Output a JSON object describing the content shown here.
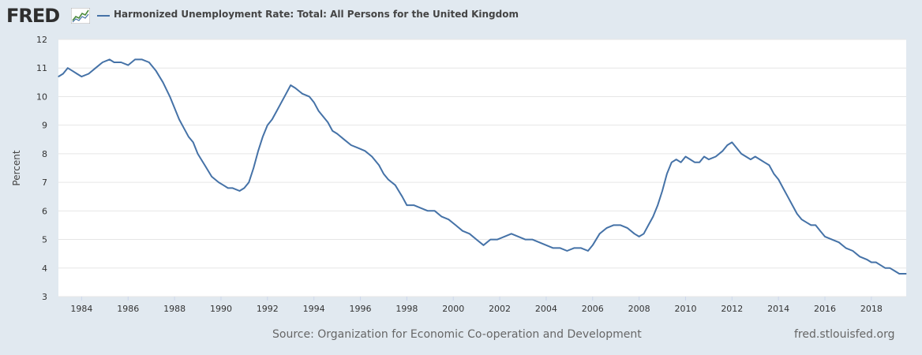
{
  "header": {
    "logo_text": "FRED",
    "title": "Harmonized Unemployment Rate: Total: All Persons for the United Kingdom"
  },
  "footer": {
    "source": "Source: Organization for Economic Co-operation and Development",
    "site": "fred.stlouisfed.org"
  },
  "colors": {
    "series": "#4572a7",
    "background": "#e1e9f0",
    "plot_bg": "#ffffff",
    "grid": "#e6e6e6"
  },
  "icons": {
    "logo_graph": "line-chart-icon"
  },
  "chart_data": {
    "type": "line",
    "title": "Harmonized Unemployment Rate: Total: All Persons for the United Kingdom",
    "xlabel": "",
    "ylabel": "Percent",
    "xlim": [
      1983.0,
      2019.5
    ],
    "ylim": [
      3,
      12
    ],
    "y_ticks": [
      3,
      4,
      5,
      6,
      7,
      8,
      9,
      10,
      11,
      12
    ],
    "x_ticks": [
      1984,
      1986,
      1988,
      1990,
      1992,
      1994,
      1996,
      1998,
      2000,
      2002,
      2004,
      2006,
      2008,
      2010,
      2012,
      2014,
      2016,
      2018
    ],
    "grid": true,
    "legend": "top-left",
    "series": [
      {
        "name": "Harmonized Unemployment Rate: Total: All Persons for the United Kingdom",
        "x": [
          1983.0,
          1983.2,
          1983.4,
          1983.6,
          1983.8,
          1984.0,
          1984.3,
          1984.6,
          1984.9,
          1985.2,
          1985.4,
          1985.7,
          1986.0,
          1986.3,
          1986.6,
          1986.9,
          1987.2,
          1987.5,
          1987.8,
          1988.0,
          1988.2,
          1988.4,
          1988.6,
          1988.8,
          1989.0,
          1989.3,
          1989.6,
          1989.9,
          1990.1,
          1990.3,
          1990.5,
          1990.8,
          1991.0,
          1991.2,
          1991.4,
          1991.6,
          1991.8,
          1992.0,
          1992.2,
          1992.4,
          1992.6,
          1992.8,
          1993.0,
          1993.2,
          1993.5,
          1993.8,
          1994.0,
          1994.2,
          1994.4,
          1994.6,
          1994.8,
          1995.0,
          1995.3,
          1995.6,
          1995.9,
          1996.2,
          1996.5,
          1996.8,
          1997.0,
          1997.2,
          1997.5,
          1997.8,
          1998.0,
          1998.3,
          1998.6,
          1998.9,
          1999.2,
          1999.5,
          1999.8,
          2000.1,
          2000.4,
          2000.7,
          2001.0,
          2001.3,
          2001.6,
          2001.9,
          2002.2,
          2002.5,
          2002.8,
          2003.1,
          2003.4,
          2003.7,
          2004.0,
          2004.3,
          2004.6,
          2004.9,
          2005.2,
          2005.5,
          2005.8,
          2006.0,
          2006.3,
          2006.6,
          2006.9,
          2007.2,
          2007.5,
          2007.8,
          2008.0,
          2008.2,
          2008.4,
          2008.6,
          2008.8,
          2009.0,
          2009.2,
          2009.4,
          2009.6,
          2009.8,
          2010.0,
          2010.2,
          2010.4,
          2010.6,
          2010.8,
          2011.0,
          2011.3,
          2011.6,
          2011.8,
          2012.0,
          2012.2,
          2012.4,
          2012.6,
          2012.8,
          2013.0,
          2013.2,
          2013.4,
          2013.6,
          2013.8,
          2014.0,
          2014.2,
          2014.4,
          2014.6,
          2014.8,
          2015.0,
          2015.2,
          2015.4,
          2015.6,
          2015.8,
          2016.0,
          2016.3,
          2016.6,
          2016.9,
          2017.2,
          2017.5,
          2017.8,
          2018.0,
          2018.2,
          2018.4,
          2018.6,
          2018.8,
          2019.0,
          2019.2,
          2019.5
        ],
        "values": [
          10.7,
          10.8,
          11.0,
          10.9,
          10.8,
          10.7,
          10.8,
          11.0,
          11.2,
          11.3,
          11.2,
          11.2,
          11.1,
          11.3,
          11.3,
          11.2,
          10.9,
          10.5,
          10.0,
          9.6,
          9.2,
          8.9,
          8.6,
          8.4,
          8.0,
          7.6,
          7.2,
          7.0,
          6.9,
          6.8,
          6.8,
          6.7,
          6.8,
          7.0,
          7.5,
          8.1,
          8.6,
          9.0,
          9.2,
          9.5,
          9.8,
          10.1,
          10.4,
          10.3,
          10.1,
          10.0,
          9.8,
          9.5,
          9.3,
          9.1,
          8.8,
          8.7,
          8.5,
          8.3,
          8.2,
          8.1,
          7.9,
          7.6,
          7.3,
          7.1,
          6.9,
          6.5,
          6.2,
          6.2,
          6.1,
          6.0,
          6.0,
          5.8,
          5.7,
          5.5,
          5.3,
          5.2,
          5.0,
          4.8,
          5.0,
          5.0,
          5.1,
          5.2,
          5.1,
          5.0,
          5.0,
          4.9,
          4.8,
          4.7,
          4.7,
          4.6,
          4.7,
          4.7,
          4.6,
          4.8,
          5.2,
          5.4,
          5.5,
          5.5,
          5.4,
          5.2,
          5.1,
          5.2,
          5.5,
          5.8,
          6.2,
          6.7,
          7.3,
          7.7,
          7.8,
          7.7,
          7.9,
          7.8,
          7.7,
          7.7,
          7.9,
          7.8,
          7.9,
          8.1,
          8.3,
          8.4,
          8.2,
          8.0,
          7.9,
          7.8,
          7.9,
          7.8,
          7.7,
          7.6,
          7.3,
          7.1,
          6.8,
          6.5,
          6.2,
          5.9,
          5.7,
          5.6,
          5.5,
          5.5,
          5.3,
          5.1,
          5.0,
          4.9,
          4.7,
          4.6,
          4.4,
          4.3,
          4.2,
          4.2,
          4.1,
          4.0,
          4.0,
          3.9,
          3.8,
          3.8
        ]
      }
    ]
  }
}
